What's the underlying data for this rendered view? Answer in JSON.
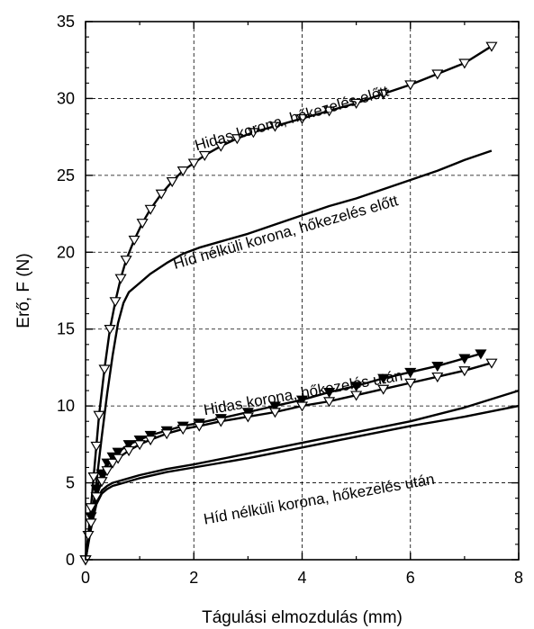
{
  "chart_data": {
    "type": "line",
    "title": "",
    "xlabel": "Tágulási elmozdulás (mm)",
    "ylabel": "Erő, F (N)",
    "xlim": [
      0,
      8
    ],
    "ylim": [
      0,
      35
    ],
    "xticks": [
      0,
      2,
      4,
      6,
      8
    ],
    "yticks": [
      0,
      5,
      10,
      15,
      20,
      25,
      30,
      35
    ],
    "grid": true,
    "legend": "none",
    "annotations": [
      {
        "text": "Hidas korona, hőkezelés előtt",
        "x": 2.05,
        "y": 26.6,
        "angle": -16
      },
      {
        "text": "Híd nélküli korona, hőkezelés előtt",
        "x": 1.65,
        "y": 18.9,
        "angle": -16
      },
      {
        "text": "Hidas korona, hőkezelés után",
        "x": 2.2,
        "y": 9.4,
        "angle": -10
      },
      {
        "text": "Híd nélküli korona, hőkezelés után",
        "x": 2.2,
        "y": 2.3,
        "angle": -10
      }
    ],
    "series": [
      {
        "marker": "triangle-down-open",
        "x": [
          0,
          0.05,
          0.1,
          0.15,
          0.2,
          0.25,
          0.35,
          0.45,
          0.55,
          0.65,
          0.75,
          0.9,
          1.05,
          1.2,
          1.4,
          1.6,
          1.8,
          2.0,
          2.2,
          2.5,
          2.8,
          3.1,
          3.5,
          4.0,
          4.5,
          5.0,
          5.5,
          6.0,
          6.5,
          7.0,
          7.5
        ],
        "y": [
          0,
          1.6,
          3.4,
          5.4,
          7.4,
          9.4,
          12.4,
          15.0,
          16.8,
          18.3,
          19.5,
          20.8,
          21.9,
          22.8,
          23.8,
          24.6,
          25.3,
          25.8,
          26.3,
          26.9,
          27.4,
          27.8,
          28.2,
          28.7,
          29.2,
          29.7,
          30.3,
          30.9,
          31.6,
          32.3,
          33.4
        ]
      },
      {
        "marker": "none",
        "x": [
          0,
          0.1,
          0.2,
          0.3,
          0.4,
          0.5,
          0.6,
          0.7,
          0.8,
          1.0,
          1.2,
          1.5,
          1.8,
          2.1,
          2.5,
          3.0,
          3.5,
          4.0,
          4.5,
          5.0,
          5.5,
          6.0,
          6.5,
          7.0,
          7.5
        ],
        "y": [
          0,
          2.4,
          5.0,
          8.0,
          10.8,
          13.3,
          15.4,
          16.7,
          17.4,
          18.0,
          18.6,
          19.3,
          19.9,
          20.3,
          20.7,
          21.2,
          21.8,
          22.4,
          23.0,
          23.5,
          24.1,
          24.7,
          25.3,
          26.0,
          26.6
        ]
      },
      {
        "marker": "triangle-down-filled",
        "x": [
          0,
          0.1,
          0.2,
          0.3,
          0.4,
          0.5,
          0.6,
          0.8,
          1.0,
          1.2,
          1.5,
          1.8,
          2.1,
          2.5,
          3.0,
          3.5,
          4.0,
          4.5,
          5.0,
          5.5,
          6.0,
          6.5,
          7.0,
          7.3
        ],
        "y": [
          0,
          2.8,
          4.6,
          5.6,
          6.3,
          6.7,
          7.0,
          7.5,
          7.8,
          8.1,
          8.4,
          8.7,
          8.9,
          9.2,
          9.6,
          10.0,
          10.4,
          10.9,
          11.3,
          11.8,
          12.2,
          12.6,
          13.1,
          13.4
        ]
      },
      {
        "marker": "triangle-down-open",
        "x": [
          0,
          0.1,
          0.2,
          0.3,
          0.4,
          0.5,
          0.6,
          0.8,
          1.0,
          1.2,
          1.5,
          1.8,
          2.1,
          2.5,
          3.0,
          3.5,
          4.0,
          4.5,
          5.0,
          5.5,
          6.0,
          6.5,
          7.0,
          7.5
        ],
        "y": [
          0,
          2.4,
          4.1,
          5.1,
          5.8,
          6.3,
          6.6,
          7.1,
          7.5,
          7.8,
          8.2,
          8.5,
          8.7,
          9.0,
          9.3,
          9.6,
          10.0,
          10.3,
          10.7,
          11.1,
          11.5,
          11.9,
          12.3,
          12.8
        ]
      },
      {
        "marker": "none",
        "x": [
          0,
          0.1,
          0.2,
          0.3,
          0.4,
          0.5,
          0.7,
          1.0,
          1.5,
          2.0,
          3.0,
          4.0,
          5.0,
          6.0,
          7.0,
          8.0
        ],
        "y": [
          0,
          2.3,
          3.8,
          4.5,
          4.8,
          5.0,
          5.2,
          5.5,
          5.9,
          6.2,
          6.9,
          7.6,
          8.3,
          9.0,
          9.9,
          11.0
        ]
      },
      {
        "marker": "none",
        "x": [
          0,
          0.1,
          0.2,
          0.3,
          0.4,
          0.5,
          0.7,
          1.0,
          1.5,
          2.0,
          3.0,
          4.0,
          5.0,
          6.0,
          7.0,
          8.0
        ],
        "y": [
          0,
          2.0,
          3.6,
          4.3,
          4.6,
          4.8,
          5.0,
          5.3,
          5.7,
          6.0,
          6.6,
          7.3,
          8.0,
          8.7,
          9.3,
          10.0
        ]
      }
    ]
  }
}
